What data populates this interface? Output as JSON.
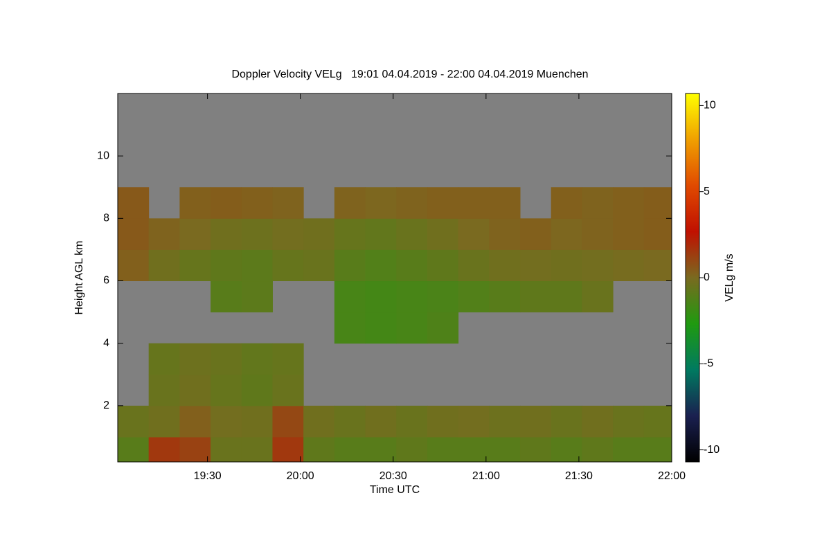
{
  "chart_data": {
    "type": "heatmap",
    "title": "Doppler Velocity VELg   19:01 04.04.2019 - 22:00 04.04.2019 Muenchen",
    "x_label": "Time UTC",
    "y_label": "Height AGL km",
    "colorbar_label": "VELg m/s",
    "xlim": [
      1141,
      1320
    ],
    "xticks": [
      {
        "value": 1170,
        "label": "19:30"
      },
      {
        "value": 1200,
        "label": "20:00"
      },
      {
        "value": 1230,
        "label": "20:30"
      },
      {
        "value": 1260,
        "label": "21:00"
      },
      {
        "value": 1290,
        "label": "21:30"
      },
      {
        "value": 1320,
        "label": "22:00"
      }
    ],
    "ylim": [
      0.2,
      12.0
    ],
    "yticks": [
      2,
      4,
      6,
      8,
      10
    ],
    "clim": [
      -10.7,
      10.7
    ],
    "cticks": [
      -10,
      -5,
      0,
      5,
      10
    ],
    "colormap": [
      "#000000",
      "#1a2050",
      "#007a60",
      "#209a10",
      "#7a6a20",
      "#c01000",
      "#e04a00",
      "#f0a000",
      "#ffff00"
    ],
    "nodata_color": "#808080",
    "x": [
      1146,
      1156,
      1166,
      1176,
      1186,
      1196,
      1206,
      1216,
      1226,
      1236,
      1246,
      1256,
      1266,
      1276,
      1286,
      1296,
      1306,
      1316
    ],
    "y": [
      0.5,
      1.5,
      2.5,
      3.5,
      4.5,
      5.5,
      6.5,
      7.5,
      8.5,
      9.5,
      10.5,
      11.5
    ],
    "z": [
      [
        -1,
        1.5,
        1.2,
        -0.5,
        -0.5,
        1.5,
        -0.8,
        -1,
        -1,
        -0.8,
        -1,
        -1,
        -1,
        -0.8,
        -1,
        -0.8,
        -1,
        -1
      ],
      [
        -0.5,
        -0.3,
        0.3,
        -0.2,
        -0.3,
        1,
        -0.3,
        -0.5,
        -0.3,
        -0.5,
        -0.3,
        -0.2,
        -0.4,
        -0.3,
        -0.5,
        -0.3,
        -0.5,
        -0.6
      ],
      [
        null,
        -0.5,
        -0.3,
        -0.6,
        -0.8,
        -0.5,
        null,
        null,
        null,
        null,
        null,
        null,
        null,
        null,
        null,
        null,
        null,
        null
      ],
      [
        null,
        -0.6,
        -0.4,
        -0.5,
        -0.7,
        -0.6,
        null,
        null,
        null,
        null,
        null,
        null,
        null,
        null,
        null,
        null,
        null,
        null
      ],
      [
        null,
        null,
        null,
        null,
        null,
        null,
        null,
        -1.5,
        -1.6,
        -1.5,
        -1.3,
        null,
        null,
        null,
        null,
        null,
        null,
        null
      ],
      [
        null,
        null,
        null,
        -1,
        -0.9,
        null,
        null,
        -1.5,
        -1.6,
        -1.5,
        -1.4,
        -1.2,
        -1,
        -0.8,
        -0.8,
        -0.5,
        null,
        null
      ],
      [
        0.3,
        -0.3,
        -0.6,
        -0.8,
        -0.9,
        -0.6,
        -0.5,
        -1,
        -1.2,
        -1,
        -0.8,
        -0.5,
        -0.3,
        -0.2,
        -0.3,
        -0.2,
        -0.1,
        0
      ],
      [
        0.5,
        0.2,
        0,
        -0.3,
        -0.4,
        -0.2,
        -0.3,
        -0.6,
        -0.7,
        -0.5,
        -0.3,
        0,
        0.2,
        0.3,
        0.1,
        0.2,
        0.3,
        0.4
      ],
      [
        0.5,
        null,
        0.3,
        0.4,
        0.3,
        0.2,
        null,
        0.2,
        0.1,
        0.2,
        0.3,
        0.3,
        0.3,
        null,
        0.3,
        0.2,
        0.3,
        0.4
      ],
      [
        null,
        null,
        null,
        null,
        null,
        null,
        null,
        null,
        null,
        null,
        null,
        null,
        null,
        null,
        null,
        null,
        null,
        null
      ],
      [
        null,
        null,
        null,
        null,
        null,
        null,
        null,
        null,
        null,
        null,
        null,
        null,
        null,
        null,
        null,
        null,
        null,
        null
      ],
      [
        null,
        null,
        null,
        null,
        null,
        null,
        null,
        null,
        null,
        null,
        null,
        null,
        null,
        null,
        null,
        null,
        null,
        null
      ]
    ]
  }
}
